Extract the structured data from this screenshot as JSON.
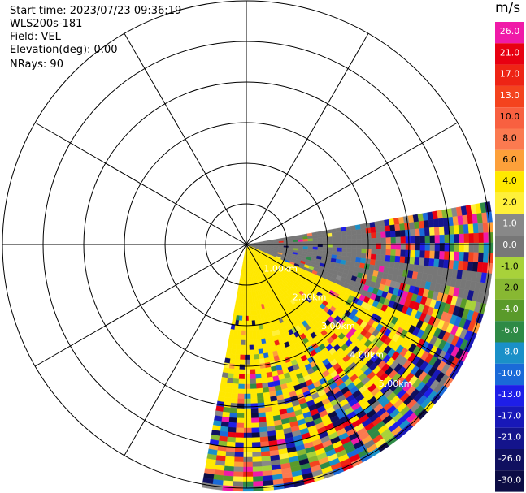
{
  "header": {
    "start_time": "Start time: 2023/07/23 09:36:19",
    "instrument": "WLS200s-181",
    "field": "Field: VEL",
    "elevation": "Elevation(deg): 0.00",
    "nrays": "NRays: 90"
  },
  "colorbar": {
    "unit": "m/s",
    "levels": [
      {
        "label": "26.0",
        "color": "#f01aa8"
      },
      {
        "label": "21.0",
        "color": "#e80012"
      },
      {
        "label": "17.0",
        "color": "#ee2415"
      },
      {
        "label": "13.0",
        "color": "#f4431e"
      },
      {
        "label": "10.0",
        "color": "#f86040"
      },
      {
        "label": "8.0",
        "color": "#fb7a50"
      },
      {
        "label": "6.0",
        "color": "#fda03a"
      },
      {
        "label": "4.0",
        "color": "#ffe800"
      },
      {
        "label": "2.0",
        "color": "#fff03a"
      },
      {
        "label": "1.0",
        "color": "#888888"
      },
      {
        "label": "0.0",
        "color": "#777777"
      },
      {
        "label": "-1.0",
        "color": "#a8d23a"
      },
      {
        "label": "-2.0",
        "color": "#88b832"
      },
      {
        "label": "-4.0",
        "color": "#5a9a2a"
      },
      {
        "label": "-6.0",
        "color": "#2e8a46"
      },
      {
        "label": "-8.0",
        "color": "#1a90c8"
      },
      {
        "label": "-10.0",
        "color": "#1a6ad8"
      },
      {
        "label": "-13.0",
        "color": "#1e1ee8"
      },
      {
        "label": "-17.0",
        "color": "#1818b8"
      },
      {
        "label": "-21.0",
        "color": "#14148c"
      },
      {
        "label": "-26.0",
        "color": "#101060"
      },
      {
        "label": "-30.0",
        "color": "#0c0c44"
      }
    ]
  },
  "chart_data": {
    "type": "heatmap",
    "projection": "polar PPI",
    "ring_spacing_km": 1.0,
    "ring_count": 6,
    "spoke_step_deg": 30,
    "sector_deg": [
      80,
      190
    ],
    "max_range_km": 6.0,
    "range_labels": [
      "1.00km",
      "2.00km",
      "3.00km",
      "4.00km",
      "5.00km"
    ],
    "range_label_bearing_deg": 135,
    "near_field_value": 4.0,
    "ground_clutter_value": 0.0,
    "far_field_noise": "random"
  }
}
